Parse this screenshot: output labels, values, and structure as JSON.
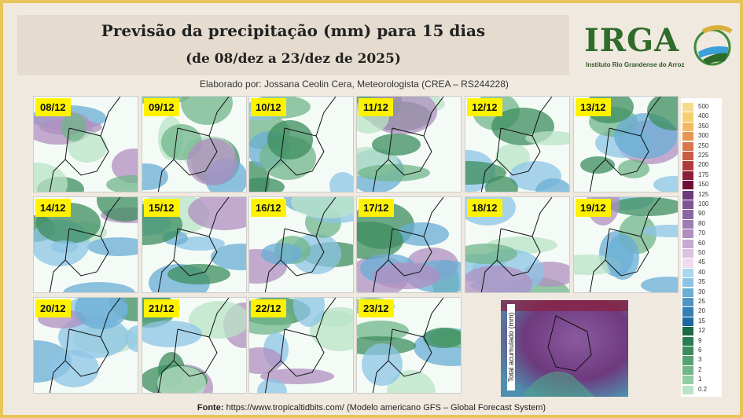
{
  "title": {
    "line1": "Previsão da precipitação (mm) para 15 dias",
    "line2": "(de 08/dez a 23/dez de 2025)"
  },
  "author": "Elaborado por: Jossana Ceolin Cera, Meteorologista (CREA – RS244228)",
  "logo": {
    "name": "IRGA",
    "subtitle": "Instituto Rio Grandense do Arroz"
  },
  "maps": [
    "08/12",
    "09/12",
    "10/12",
    "11/12",
    "12/12",
    "13/12",
    "14/12",
    "15/12",
    "16/12",
    "17/12",
    "18/12",
    "19/12",
    "20/12",
    "21/12",
    "22/12",
    "23/12"
  ],
  "total_label": "Total acumulado (mm)",
  "colorbar": {
    "labels": [
      "500",
      "400",
      "350",
      "300",
      "250",
      "225",
      "200",
      "175",
      "150",
      "125",
      "100",
      "90",
      "80",
      "70",
      "60",
      "50",
      "45",
      "40",
      "35",
      "30",
      "25",
      "20",
      "15",
      "12",
      "9",
      "6",
      "3",
      "2",
      "1",
      "0.2"
    ],
    "colors": [
      "#f5dc8c",
      "#f6cf6e",
      "#f3b962",
      "#e79553",
      "#d8774b",
      "#c75c44",
      "#b03b3c",
      "#8c1f3a",
      "#6e0f35",
      "#6b3a7a",
      "#7d5595",
      "#8b67a3",
      "#9d7db3",
      "#b08fc0",
      "#c6a9d1",
      "#dcc3e2",
      "#efdcf0",
      "#a8d7f0",
      "#8cc4e6",
      "#6aaed6",
      "#4e95c3",
      "#357fb2",
      "#1c6aa0",
      "#1b6b45",
      "#2a7d52",
      "#3d8d5f",
      "#57a173",
      "#72b68a",
      "#92cca3",
      "#b9e3c6"
    ]
  },
  "source": {
    "label": "Fonte:",
    "text": "https://www.tropicaltidbits.com/ (Modelo americano GFS – Global Forecast System)"
  }
}
